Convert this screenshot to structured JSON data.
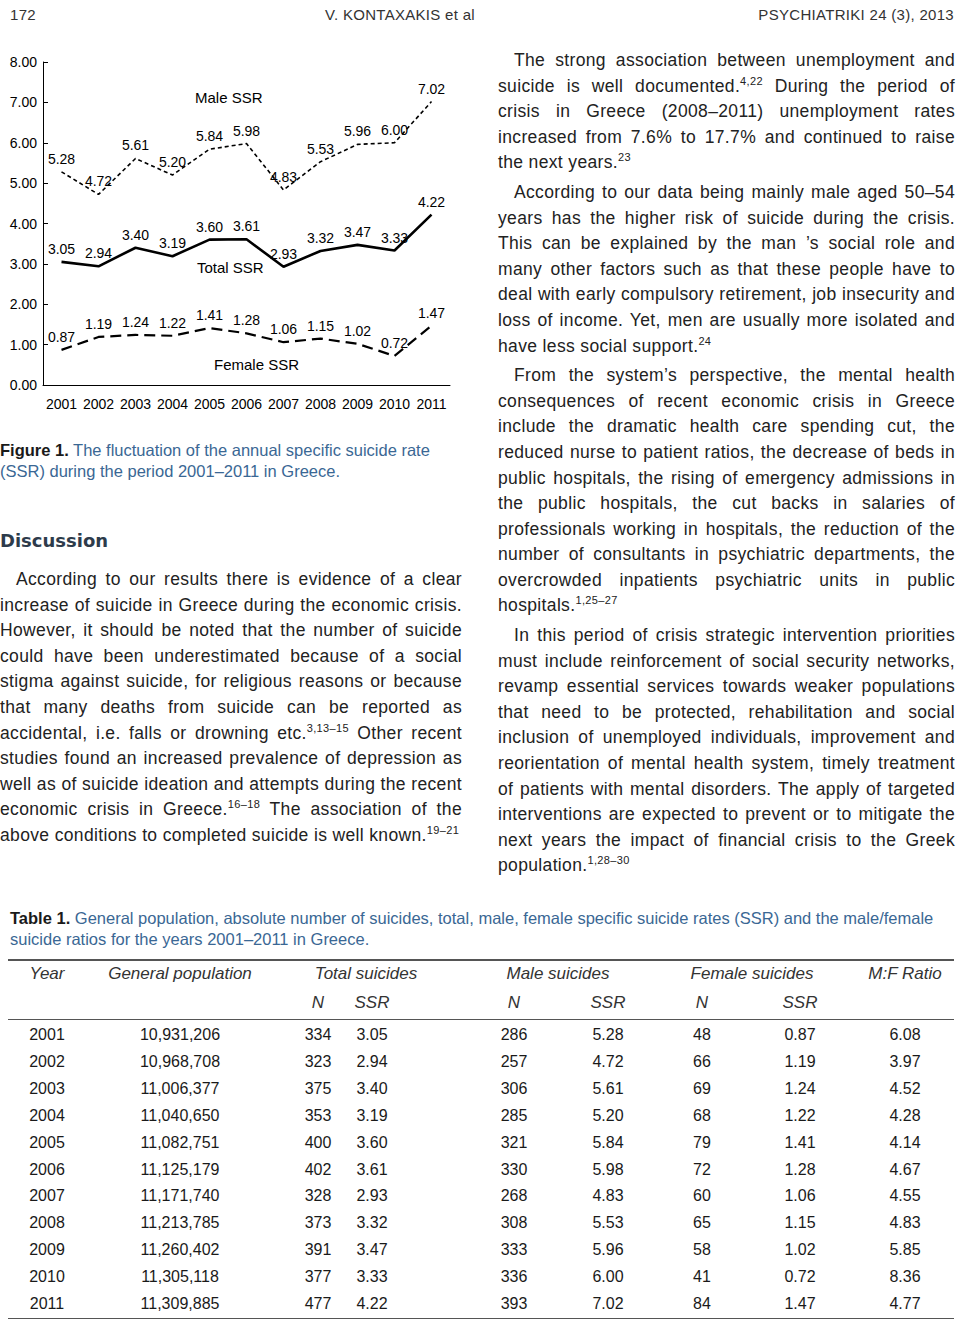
{
  "header": {
    "page": "172",
    "authors": "V. KONTAXAKIS et al",
    "journal": "PSYCHIATRIKI 24 (3), 2013"
  },
  "chart_data": {
    "type": "line",
    "categories": [
      "2001",
      "2002",
      "2003",
      "2004",
      "2005",
      "2006",
      "2007",
      "2008",
      "2009",
      "2010",
      "2011"
    ],
    "series": [
      {
        "name": "Male SSR",
        "color": "#000000",
        "line_style": "dotted",
        "marker": "none",
        "values": [
          5.28,
          4.72,
          5.61,
          5.2,
          5.84,
          5.98,
          4.83,
          5.53,
          5.96,
          6.0,
          7.02
        ],
        "value_labels": [
          "5.28",
          "4.72",
          "5.61",
          "5.20",
          "5.84",
          "5.98",
          "4.83",
          "5.53",
          "5.96",
          "6.00",
          "7.02"
        ]
      },
      {
        "name": "Total SSR",
        "color": "#000000",
        "line_style": "solid",
        "marker": "none",
        "values": [
          3.05,
          2.94,
          3.4,
          3.19,
          3.6,
          3.61,
          2.93,
          3.32,
          3.47,
          3.33,
          4.22
        ],
        "value_labels": [
          "3.05",
          "2.94",
          "3.40",
          "3.19",
          "3.60",
          "3.61",
          "2.93",
          "3.32",
          "3.47",
          "3.33",
          "4.22"
        ]
      },
      {
        "name": "Female SSR",
        "color": "#000000",
        "line_style": "dashed",
        "marker": "none",
        "values": [
          0.87,
          1.19,
          1.24,
          1.22,
          1.41,
          1.28,
          1.06,
          1.15,
          1.02,
          0.72,
          1.47
        ],
        "value_labels": [
          "0.87",
          "1.19",
          "1.24",
          "1.22",
          "1.41",
          "1.28",
          "1.06",
          "1.15",
          "1.02",
          "0.72",
          "1.47"
        ]
      }
    ],
    "ylim": [
      0,
      8
    ],
    "yticks": [
      {
        "value": 0,
        "label": "0.00"
      },
      {
        "value": 1,
        "label": "1.00"
      },
      {
        "value": 2,
        "label": "2.00"
      },
      {
        "value": 3,
        "label": "3.00"
      },
      {
        "value": 4,
        "label": "4.00"
      },
      {
        "value": 5,
        "label": "5.00"
      },
      {
        "value": 6,
        "label": "6.00"
      },
      {
        "value": 7,
        "label": "7.00"
      },
      {
        "value": 8,
        "label": "8.00"
      }
    ],
    "grid": false,
    "data_labels": true
  },
  "figure_caption": {
    "label": "Figure 1.",
    "text": "The fluctuation of the annual specific suicide rate (SSR) during the period 2001–2011 in Greece."
  },
  "discussion": {
    "heading": "Discussion",
    "left": [
      [
        "According to our results there is evidence of a clear increase of suicide in Greece during the economic crisis. However, it should be noted that the number of suicide could have been underestimated because of a social stigma against suicide, for religious reasons or because that many deaths from suicide can be reported as accidental, i.e. falls or drowning etc.",
        {
          "sup": "3,13–15"
        },
        " Other recent studies found an increased prevalence of depression as well as of suicide ideation and attempts during the recent economic crisis in Greece.",
        {
          "sup": "16–18"
        },
        " The association of the above conditions to completed suicide is well known.",
        {
          "sup": "19–21"
        }
      ]
    ],
    "right": [
      [
        "The strong association between unemployment and suicide is well documented.",
        {
          "sup": "4,22"
        },
        " During the period of crisis in Greece (2008–2011) unemployment rates increased from 7.6% to 17.7% and continued to raise the next years.",
        {
          "sup": "23"
        }
      ],
      [
        "According to our data being mainly male aged 50–54 years has the higher risk of suicide during the crisis. This can be explained by the man ’s social role and many other factors such as that these people have to deal with early compulsory retirement, job insecurity and loss of income. Yet, men are usually more isolated and have less social support.",
        {
          "sup": "24"
        }
      ],
      [
        "From the system’s perspective, the mental health consequences of recent economic crisis in Greece include the dramatic health care spending cut, the reduced nurse to patient ratios, the decrease of beds in public hospitals, the rising of emergency admissions in the public hospitals, the cut backs in salaries of professionals working in hospitals, the reduction of the number of consultants in psychiatric departments, the overcrowded inpatients psychiatric units in public hospitals.",
        {
          "sup": "1,25–27"
        }
      ],
      [
        "In this period of crisis strategic intervention priorities must include reinforcement of social security networks, revamp essential services towards weaker populations that need to be protected, rehabilitation and social inclusion of unemployed individuals, improvement and reorientation of mental health system, timely treatment of patients with mental disorders. The apply of targeted interventions are expected to prevent or to mitigate the next years the impact of financial crisis to the Greek population.",
        {
          "sup": "1,28–30"
        }
      ]
    ]
  },
  "table": {
    "caption": {
      "label": "Table 1.",
      "text": "General population, absolute number of suicides, total, male, female specific suicide rates (SSR) and the male/female suicide ratios for the years 2001–2011 in Greece."
    },
    "header": [
      "Year",
      "General population",
      "Total suicides",
      "Male suicides",
      "Female suicides",
      "M:F Ratio"
    ],
    "subheader": [
      "N",
      "SSR",
      "N",
      "SSR",
      "N",
      "SSR"
    ],
    "rows": [
      [
        "2001",
        "10,931,206",
        "334",
        "3.05",
        "286",
        "5.28",
        "48",
        "0.87",
        "6.08"
      ],
      [
        "2002",
        "10,968,708",
        "323",
        "2.94",
        "257",
        "4.72",
        "66",
        "1.19",
        "3.97"
      ],
      [
        "2003",
        "11,006,377",
        "375",
        "3.40",
        "306",
        "5.61",
        "69",
        "1.24",
        "4.52"
      ],
      [
        "2004",
        "11,040,650",
        "353",
        "3.19",
        "285",
        "5.20",
        "68",
        "1.22",
        "4.28"
      ],
      [
        "2005",
        "11,082,751",
        "400",
        "3.60",
        "321",
        "5.84",
        "79",
        "1.41",
        "4.14"
      ],
      [
        "2006",
        "11,125,179",
        "402",
        "3.61",
        "330",
        "5.98",
        "72",
        "1.28",
        "4.67"
      ],
      [
        "2007",
        "11,171,740",
        "328",
        "2.93",
        "268",
        "4.83",
        "60",
        "1.06",
        "4.55"
      ],
      [
        "2008",
        "11,213,785",
        "373",
        "3.32",
        "308",
        "5.53",
        "65",
        "1.15",
        "4.83"
      ],
      [
        "2009",
        "11,260,402",
        "391",
        "3.47",
        "333",
        "5.96",
        "58",
        "1.02",
        "5.85"
      ],
      [
        "2010",
        "11,305,118",
        "377",
        "3.33",
        "336",
        "6.00",
        "41",
        "0.72",
        "8.36"
      ],
      [
        "2011",
        "11,309,885",
        "477",
        "4.22",
        "393",
        "7.02",
        "84",
        "1.47",
        "4.77"
      ]
    ]
  }
}
